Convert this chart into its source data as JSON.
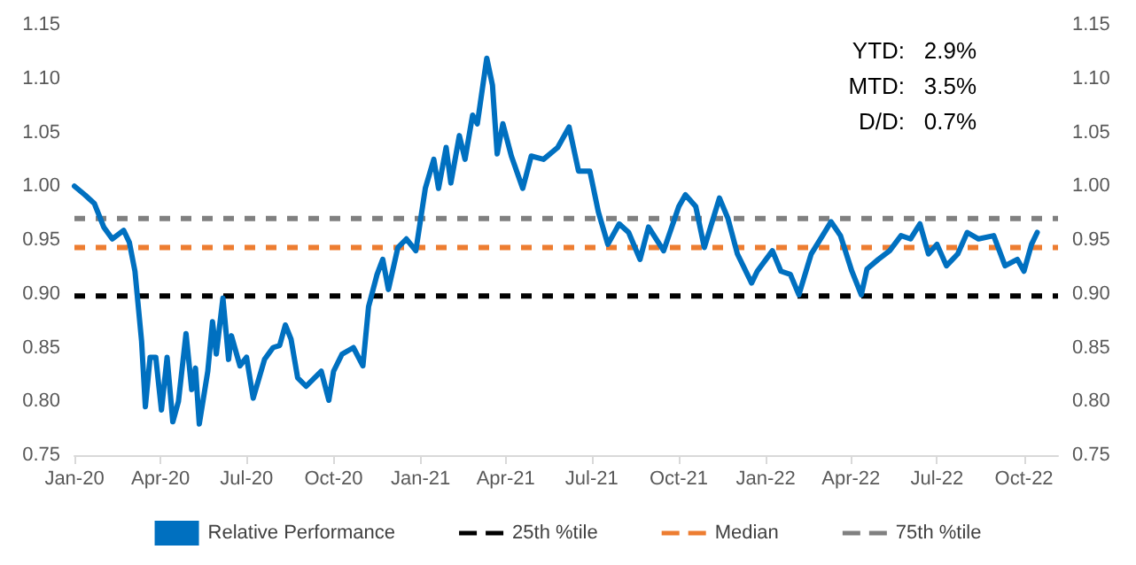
{
  "chart_data": {
    "type": "line",
    "x": [
      "2020-01-01",
      "2020-01-12",
      "2020-01-22",
      "2020-02-01",
      "2020-02-10",
      "2020-02-22",
      "2020-02-28",
      "2020-03-05",
      "2020-03-12",
      "2020-03-16",
      "2020-03-21",
      "2020-03-27",
      "2020-04-02",
      "2020-04-08",
      "2020-04-14",
      "2020-04-20",
      "2020-04-28",
      "2020-05-04",
      "2020-05-08",
      "2020-05-12",
      "2020-05-21",
      "2020-05-26",
      "2020-05-30",
      "2020-06-06",
      "2020-06-12",
      "2020-06-15",
      "2020-06-24",
      "2020-07-01",
      "2020-07-08",
      "2020-07-20",
      "2020-07-29",
      "2020-08-05",
      "2020-08-11",
      "2020-08-17",
      "2020-08-24",
      "2020-09-02",
      "2020-09-18",
      "2020-09-26",
      "2020-10-01",
      "2020-10-10",
      "2020-10-22",
      "2020-11-01",
      "2020-11-07",
      "2020-11-16",
      "2020-11-22",
      "2020-11-28",
      "2020-12-08",
      "2020-12-17",
      "2020-12-27",
      "2021-01-06",
      "2021-01-15",
      "2021-01-20",
      "2021-01-28",
      "2021-02-02",
      "2021-02-11",
      "2021-02-17",
      "2021-02-25",
      "2021-03-02",
      "2021-03-12",
      "2021-03-18",
      "2021-03-23",
      "2021-03-29",
      "2021-04-07",
      "2021-04-19",
      "2021-04-28",
      "2021-05-11",
      "2021-05-26",
      "2021-06-07",
      "2021-06-17",
      "2021-06-29",
      "2021-07-08",
      "2021-07-18",
      "2021-07-30",
      "2021-08-09",
      "2021-08-21",
      "2021-08-30",
      "2021-09-15",
      "2021-10-01",
      "2021-10-08",
      "2021-10-19",
      "2021-10-28",
      "2021-11-13",
      "2021-11-22",
      "2021-12-02",
      "2021-12-17",
      "2021-12-23",
      "2022-01-08",
      "2022-01-17",
      "2022-01-27",
      "2022-02-05",
      "2022-02-18",
      "2022-03-02",
      "2022-03-11",
      "2022-03-21",
      "2022-04-02",
      "2022-04-12",
      "2022-04-18",
      "2022-04-30",
      "2022-05-12",
      "2022-05-24",
      "2022-06-03",
      "2022-06-13",
      "2022-06-22",
      "2022-07-01",
      "2022-07-11",
      "2022-07-23",
      "2022-08-02",
      "2022-08-14",
      "2022-08-30",
      "2022-09-11",
      "2022-09-24",
      "2022-10-01",
      "2022-10-09",
      "2022-10-15"
    ],
    "series": [
      {
        "name": "Relative Performance",
        "color": "#0070c0",
        "values": [
          1.0,
          0.992,
          0.984,
          0.962,
          0.951,
          0.959,
          0.948,
          0.921,
          0.856,
          0.795,
          0.841,
          0.841,
          0.792,
          0.841,
          0.781,
          0.8,
          0.863,
          0.811,
          0.831,
          0.779,
          0.828,
          0.874,
          0.844,
          0.896,
          0.839,
          0.861,
          0.833,
          0.841,
          0.803,
          0.839,
          0.85,
          0.852,
          0.871,
          0.858,
          0.822,
          0.814,
          0.828,
          0.801,
          0.828,
          0.844,
          0.85,
          0.833,
          0.888,
          0.918,
          0.932,
          0.904,
          0.943,
          0.951,
          0.94,
          0.998,
          1.025,
          0.998,
          1.036,
          1.003,
          1.047,
          1.025,
          1.066,
          1.058,
          1.119,
          1.094,
          1.03,
          1.058,
          1.028,
          0.998,
          1.028,
          1.025,
          1.036,
          1.055,
          1.014,
          1.014,
          0.976,
          0.946,
          0.965,
          0.957,
          0.932,
          0.962,
          0.94,
          0.981,
          0.992,
          0.981,
          0.943,
          0.989,
          0.97,
          0.937,
          0.91,
          0.921,
          0.94,
          0.921,
          0.918,
          0.899,
          0.937,
          0.954,
          0.967,
          0.954,
          0.921,
          0.899,
          0.923,
          0.932,
          0.94,
          0.954,
          0.951,
          0.965,
          0.937,
          0.946,
          0.926,
          0.937,
          0.957,
          0.951,
          0.954,
          0.926,
          0.932,
          0.921,
          0.946,
          0.957
        ]
      }
    ],
    "ref_lines": [
      {
        "axis": "y",
        "value": 0.898,
        "label": "25th %tile",
        "color": "#000000",
        "line_style": "dashed"
      },
      {
        "axis": "y",
        "value": 0.943,
        "label": "Median",
        "color": "#ed7d31",
        "line_style": "dashed"
      },
      {
        "axis": "y",
        "value": 0.97,
        "label": "75th %tile",
        "color": "#808080",
        "line_style": "dashed"
      }
    ],
    "annotations": [
      "YTD:   2.9%",
      "MTD:   3.5%",
      "D/D:   0.7%"
    ],
    "xlim": [
      "2020-01-01",
      "2022-11-06"
    ],
    "xticks": [
      {
        "value": "2020-01-01",
        "label": "Jan-20"
      },
      {
        "value": "2020-04-01",
        "label": "Apr-20"
      },
      {
        "value": "2020-07-01",
        "label": "Jul-20"
      },
      {
        "value": "2020-10-01",
        "label": "Oct-20"
      },
      {
        "value": "2021-01-01",
        "label": "Jan-21"
      },
      {
        "value": "2021-04-01",
        "label": "Apr-21"
      },
      {
        "value": "2021-07-01",
        "label": "Jul-21"
      },
      {
        "value": "2021-10-01",
        "label": "Oct-21"
      },
      {
        "value": "2022-01-01",
        "label": "Jan-22"
      },
      {
        "value": "2022-04-01",
        "label": "Apr-22"
      },
      {
        "value": "2022-07-01",
        "label": "Jul-22"
      },
      {
        "value": "2022-10-01",
        "label": "Oct-22"
      }
    ],
    "ylim": [
      0.75,
      1.15
    ],
    "yticks": [
      {
        "value": 0.75,
        "label": "0.75"
      },
      {
        "value": 0.8,
        "label": "0.80"
      },
      {
        "value": 0.85,
        "label": "0.85"
      },
      {
        "value": 0.9,
        "label": "0.90"
      },
      {
        "value": 0.95,
        "label": "0.95"
      },
      {
        "value": 1.0,
        "label": "1.00"
      },
      {
        "value": 1.05,
        "label": "1.05"
      },
      {
        "value": 1.1,
        "label": "1.10"
      },
      {
        "value": 1.15,
        "label": "1.15"
      }
    ],
    "y2lim": [
      0.75,
      1.15
    ],
    "y2ticks": [
      {
        "value": 0.75,
        "label": "0.75"
      },
      {
        "value": 0.8,
        "label": "0.80"
      },
      {
        "value": 0.85,
        "label": "0.85"
      },
      {
        "value": 0.9,
        "label": "0.90"
      },
      {
        "value": 0.95,
        "label": "0.95"
      },
      {
        "value": 1.0,
        "label": "1.00"
      },
      {
        "value": 1.05,
        "label": "1.05"
      },
      {
        "value": 1.1,
        "label": "1.10"
      },
      {
        "value": 1.15,
        "label": "1.15"
      }
    ],
    "grid": false,
    "legend": "bottom",
    "marker": "none",
    "line_style": "solid"
  }
}
